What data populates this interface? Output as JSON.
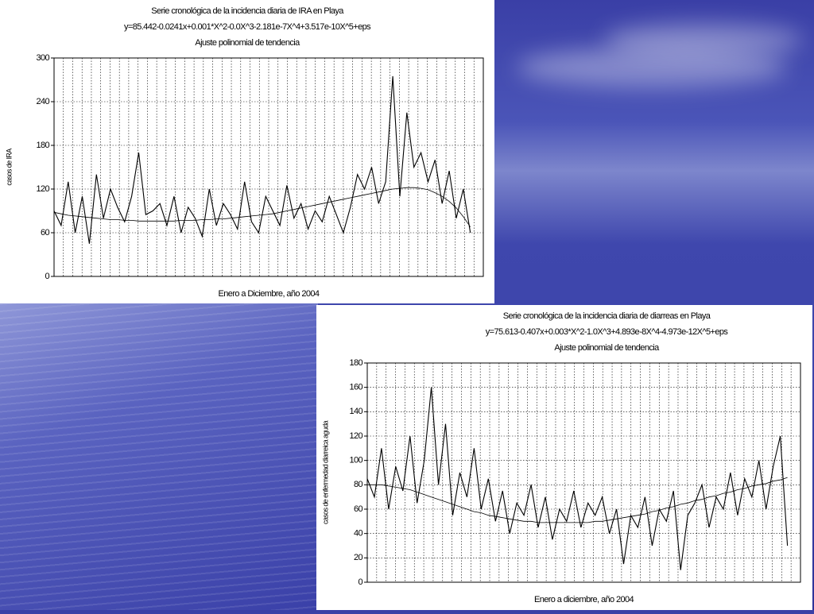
{
  "chart_data": [
    {
      "type": "line",
      "title": "Serie cronológica de la incidencia diaria de IRA en Playa",
      "subtitle": "y=85.442-0.0241x+0.001*X^2-0.0X^3-2.181e-7X^4+3.517e-10X^5+eps",
      "note": "Ajuste polinomial de tendencia",
      "x_label": "Enero a Diciembre, año 2004",
      "y_label": "casos de IRA",
      "x": [
        1,
        7,
        13,
        19,
        25,
        31,
        37,
        43,
        49,
        55,
        61,
        67,
        73,
        79,
        85,
        91,
        97,
        103,
        109,
        115,
        121,
        127,
        133,
        139,
        145,
        151,
        157,
        163,
        169,
        175,
        181,
        187,
        193,
        199,
        205,
        211,
        217,
        223,
        229,
        235,
        241,
        247,
        253,
        259,
        265,
        271,
        277,
        283,
        289,
        295,
        301,
        307,
        313,
        319,
        325,
        331,
        337,
        343,
        349,
        355
      ],
      "xlim": [
        1,
        366
      ],
      "ylim": [
        0,
        300
      ],
      "yticks": [
        0,
        60,
        120,
        180,
        240,
        300
      ],
      "grid": true,
      "series": [
        {
          "color": "#000000",
          "values": [
            90,
            70,
            130,
            60,
            110,
            45,
            140,
            80,
            120,
            95,
            75,
            110,
            170,
            85,
            90,
            100,
            70,
            110,
            60,
            95,
            80,
            55,
            120,
            70,
            100,
            85,
            65,
            130,
            75,
            60,
            110,
            90,
            70,
            125,
            80,
            100,
            65,
            90,
            75,
            110,
            85,
            60,
            95,
            140,
            120,
            150,
            100,
            130,
            275,
            110,
            225,
            150,
            170,
            130,
            160,
            100,
            145,
            80,
            120,
            60
          ]
        },
        {
          "color": "#000000",
          "values": [
            88,
            86,
            84,
            83,
            82,
            81,
            80,
            79,
            78,
            78,
            77,
            77,
            76,
            76,
            76,
            76,
            76,
            76,
            77,
            77,
            77,
            78,
            78,
            79,
            79,
            80,
            81,
            82,
            83,
            84,
            85,
            86,
            88,
            90,
            92,
            94,
            96,
            98,
            100,
            102,
            104,
            106,
            108,
            110,
            112,
            114,
            116,
            118,
            120,
            121,
            122,
            122,
            121,
            119,
            115,
            110,
            103,
            94,
            82,
            68
          ]
        }
      ]
    },
    {
      "type": "line",
      "title": "Serie cronológica de la incidencia diaria de diarreas en Playa",
      "subtitle": "y=75.613-0.407x+0.003*X^2-1.0X^3+4.893e-8X^4-4.973e-12X^5+eps",
      "note": "Ajuste polinomial de tendencia",
      "x_label": "Enero a diciembre, año 2004",
      "y_label": "casos de enfermedad diarreica aguda",
      "x": [
        1,
        7,
        13,
        19,
        25,
        31,
        37,
        43,
        49,
        55,
        61,
        67,
        73,
        79,
        85,
        91,
        97,
        103,
        109,
        115,
        121,
        127,
        133,
        139,
        145,
        151,
        157,
        163,
        169,
        175,
        181,
        187,
        193,
        199,
        205,
        211,
        217,
        223,
        229,
        235,
        241,
        247,
        253,
        259,
        265,
        271,
        277,
        283,
        289,
        295,
        301,
        307,
        313,
        319,
        325,
        331,
        337,
        343,
        349,
        355
      ],
      "xlim": [
        1,
        366
      ],
      "ylim": [
        0,
        180
      ],
      "yticks": [
        0,
        20,
        40,
        60,
        80,
        100,
        120,
        140,
        160,
        180
      ],
      "grid": true,
      "series": [
        {
          "color": "#000000",
          "values": [
            85,
            70,
            110,
            60,
            95,
            75,
            120,
            65,
            100,
            160,
            80,
            130,
            55,
            90,
            70,
            110,
            60,
            85,
            50,
            75,
            40,
            65,
            55,
            80,
            45,
            70,
            35,
            60,
            50,
            75,
            45,
            65,
            55,
            70,
            40,
            60,
            15,
            55,
            45,
            70,
            30,
            60,
            50,
            75,
            10,
            55,
            65,
            80,
            45,
            70,
            60,
            90,
            55,
            85,
            70,
            100,
            60,
            95,
            120,
            30
          ]
        },
        {
          "color": "#000000",
          "values": [
            80,
            80,
            80,
            79,
            78,
            77,
            76,
            74,
            72,
            70,
            68,
            66,
            64,
            62,
            60,
            58,
            57,
            55,
            54,
            53,
            52,
            51,
            50,
            50,
            49,
            49,
            49,
            49,
            49,
            49,
            49,
            49,
            50,
            50,
            51,
            52,
            53,
            54,
            55,
            56,
            58,
            59,
            61,
            62,
            64,
            65,
            67,
            68,
            70,
            71,
            73,
            74,
            76,
            77,
            79,
            80,
            81,
            83,
            84,
            86
          ]
        }
      ]
    }
  ]
}
